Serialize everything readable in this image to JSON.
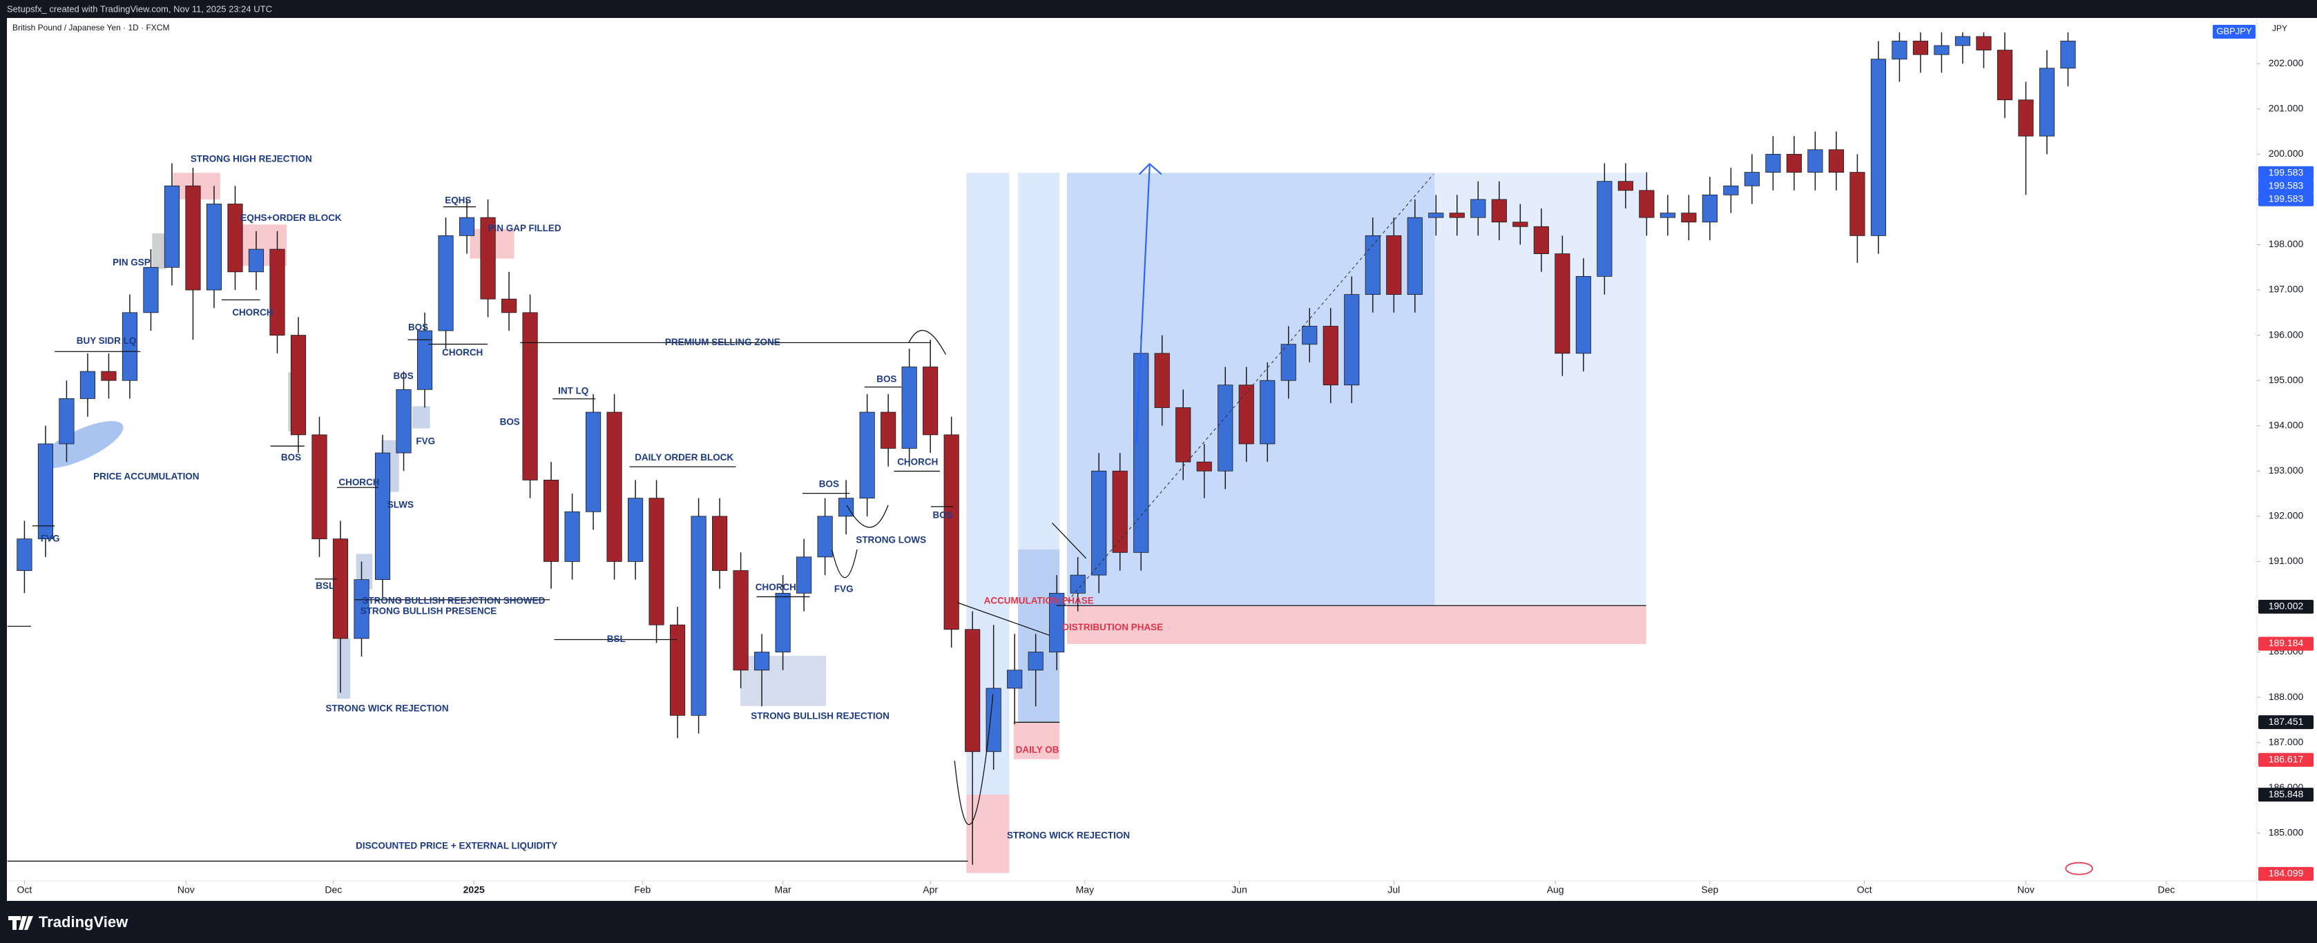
{
  "header": {
    "watermark": "Setupsfx_ created with TradingView.com, Nov 11, 2025 23:24 UTC",
    "brand": "TradingView"
  },
  "chart_data": {
    "type": "candlestick",
    "title": "British Pound / Japanese Yen · 1D · FXCM",
    "symbol": "GBPJPY",
    "currency": "JPY",
    "up_color": "#3a6fd8",
    "down_color": "#a3242b",
    "grid": false,
    "xlim": [
      -2.5,
      317.9
    ],
    "xticks": [
      {
        "value": 0,
        "label": "Oct"
      },
      {
        "value": 23,
        "label": "Nov"
      },
      {
        "value": 44,
        "label": "Dec"
      },
      {
        "value": 64,
        "label": "2025"
      },
      {
        "value": 88,
        "label": "Feb"
      },
      {
        "value": 108,
        "label": "Mar"
      },
      {
        "value": 129,
        "label": "Apr"
      },
      {
        "value": 151,
        "label": "May"
      },
      {
        "value": 173,
        "label": "Jun"
      },
      {
        "value": 195,
        "label": "Jul"
      },
      {
        "value": 218,
        "label": "Aug"
      },
      {
        "value": 240,
        "label": "Sep"
      },
      {
        "value": 262,
        "label": "Oct"
      },
      {
        "value": 285,
        "label": "Nov"
      },
      {
        "value": 305,
        "label": "Dec"
      }
    ],
    "ylim": [
      183.99,
      202.69
    ],
    "yticks": [
      {
        "value": 185,
        "label": "185.000"
      },
      {
        "value": 186,
        "label": "186.000"
      },
      {
        "value": 187,
        "label": "187.000"
      },
      {
        "value": 188,
        "label": "188.000"
      },
      {
        "value": 189,
        "label": "189.000"
      },
      {
        "value": 190,
        "label": "190.000"
      },
      {
        "value": 191,
        "label": "191.000"
      },
      {
        "value": 192,
        "label": "192.000"
      },
      {
        "value": 193,
        "label": "193.000"
      },
      {
        "value": 194,
        "label": "194.000"
      },
      {
        "value": 195,
        "label": "195.000"
      },
      {
        "value": 196,
        "label": "196.000"
      },
      {
        "value": 197,
        "label": "197.000"
      },
      {
        "value": 198,
        "label": "198.000"
      },
      {
        "value": 199,
        "label": "199.000"
      },
      {
        "value": 200,
        "label": "200.000"
      },
      {
        "value": 201,
        "label": "201.000"
      },
      {
        "value": 202,
        "label": "202.000"
      }
    ],
    "x": [
      0,
      3,
      6,
      9,
      12,
      15,
      18,
      21,
      24,
      27,
      30,
      33,
      36,
      39,
      42,
      45,
      48,
      51,
      54,
      57,
      60,
      63,
      66,
      69,
      72,
      75,
      78,
      81,
      84,
      87,
      90,
      93,
      96,
      99,
      102,
      105,
      108,
      111,
      114,
      117,
      120,
      123,
      126,
      129,
      132,
      135,
      138,
      141,
      144,
      147,
      150,
      153,
      156,
      159,
      162,
      165,
      168,
      171,
      174,
      177,
      180,
      183,
      186,
      189,
      192,
      195,
      198,
      201,
      204,
      207,
      210,
      213,
      216,
      219,
      222,
      225,
      228,
      231,
      234,
      237,
      240,
      243,
      246,
      249,
      252,
      255,
      258,
      261,
      264,
      267,
      270,
      273,
      276,
      279,
      282,
      285,
      288,
      291
    ],
    "open": [
      190.8,
      191.5,
      193.6,
      194.6,
      195.2,
      195.0,
      196.5,
      197.5,
      199.3,
      197.0,
      198.9,
      197.4,
      197.9,
      196.0,
      193.8,
      191.5,
      189.3,
      190.6,
      193.4,
      194.8,
      196.1,
      198.2,
      198.6,
      196.8,
      196.5,
      192.8,
      191.0,
      192.1,
      194.3,
      191.0,
      192.4,
      189.6,
      187.6,
      192.0,
      190.8,
      188.6,
      189.0,
      190.3,
      191.1,
      192.0,
      192.4,
      194.3,
      193.5,
      195.3,
      193.8,
      189.5,
      186.8,
      188.2,
      188.6,
      189.0,
      190.3,
      190.7,
      193.0,
      191.2,
      195.6,
      194.4,
      193.2,
      193.0,
      194.9,
      193.6,
      195.0,
      195.8,
      196.2,
      194.9,
      196.9,
      198.2,
      196.9,
      198.6,
      198.7,
      198.6,
      199.0,
      198.5,
      198.4,
      197.8,
      195.6,
      197.3,
      199.4,
      199.2,
      198.6,
      198.7,
      198.5,
      199.1,
      199.3,
      199.6,
      200.0,
      199.6,
      200.1,
      199.6,
      198.2,
      202.1,
      202.5,
      202.2,
      202.4,
      202.6,
      202.3,
      201.2,
      200.4,
      201.9
    ],
    "high": [
      191.9,
      194.0,
      195.0,
      195.6,
      195.6,
      196.9,
      197.9,
      199.8,
      199.7,
      199.3,
      199.3,
      198.3,
      198.3,
      196.4,
      194.2,
      191.9,
      191.0,
      193.8,
      195.2,
      196.5,
      198.6,
      199.0,
      199.0,
      197.4,
      196.9,
      193.2,
      192.5,
      194.7,
      194.7,
      192.8,
      192.8,
      190.0,
      192.4,
      192.4,
      191.2,
      189.4,
      190.7,
      191.5,
      192.4,
      192.8,
      194.7,
      194.7,
      195.7,
      195.9,
      194.2,
      189.9,
      189.6,
      189.4,
      189.4,
      190.7,
      191.1,
      193.4,
      193.4,
      196.0,
      196.0,
      194.8,
      193.6,
      195.3,
      195.3,
      195.4,
      196.2,
      196.6,
      196.6,
      197.3,
      198.6,
      198.6,
      199.0,
      199.1,
      199.1,
      199.4,
      199.4,
      198.9,
      198.8,
      198.2,
      197.7,
      199.8,
      199.8,
      199.6,
      199.1,
      199.1,
      199.5,
      199.7,
      200.0,
      200.4,
      200.4,
      200.5,
      200.5,
      200.0,
      202.5,
      202.9,
      202.9,
      202.8,
      203.0,
      203.0,
      202.7,
      201.6,
      202.3,
      202.9
    ],
    "low": [
      190.3,
      191.1,
      193.2,
      194.2,
      194.6,
      194.6,
      196.1,
      197.1,
      195.9,
      196.6,
      197.0,
      197.0,
      195.6,
      193.4,
      191.1,
      188.1,
      188.9,
      190.2,
      193.0,
      194.4,
      195.7,
      197.8,
      196.4,
      196.1,
      192.4,
      190.4,
      190.6,
      191.7,
      190.6,
      190.6,
      189.2,
      187.1,
      187.2,
      190.4,
      188.2,
      187.8,
      188.6,
      189.9,
      190.7,
      191.6,
      192.0,
      193.1,
      193.1,
      193.4,
      189.1,
      184.3,
      186.4,
      187.4,
      187.8,
      188.6,
      189.9,
      190.3,
      190.8,
      190.8,
      194.0,
      192.8,
      192.4,
      192.6,
      193.2,
      193.2,
      194.6,
      195.4,
      194.5,
      194.5,
      196.5,
      196.5,
      196.5,
      198.2,
      198.2,
      198.2,
      198.1,
      198.0,
      197.4,
      195.1,
      195.2,
      196.9,
      198.8,
      198.2,
      198.2,
      198.1,
      198.1,
      198.7,
      198.9,
      199.2,
      199.2,
      199.2,
      199.2,
      197.6,
      197.8,
      201.6,
      201.8,
      201.8,
      202.0,
      201.9,
      200.8,
      199.1,
      200.0,
      201.5
    ],
    "close": [
      191.5,
      193.6,
      194.6,
      195.2,
      195.0,
      196.5,
      197.5,
      199.3,
      197.0,
      198.9,
      197.4,
      197.9,
      196.0,
      193.8,
      191.5,
      189.3,
      190.6,
      193.4,
      194.8,
      196.1,
      198.2,
      198.6,
      196.8,
      196.5,
      192.8,
      191.0,
      192.1,
      194.3,
      191.0,
      192.4,
      189.6,
      187.6,
      192.0,
      190.8,
      188.6,
      189.0,
      190.3,
      191.1,
      192.0,
      192.4,
      194.3,
      193.5,
      195.3,
      193.8,
      189.5,
      186.8,
      188.2,
      188.6,
      189.0,
      190.3,
      190.7,
      193.0,
      191.2,
      195.6,
      194.4,
      193.2,
      193.0,
      194.9,
      193.6,
      195.0,
      195.8,
      196.2,
      194.9,
      196.9,
      198.2,
      196.9,
      198.6,
      198.7,
      198.6,
      199.0,
      198.5,
      198.4,
      197.8,
      195.6,
      197.3,
      199.4,
      199.2,
      198.6,
      198.7,
      198.5,
      199.1,
      199.3,
      199.6,
      200.0,
      199.6,
      200.1,
      199.6,
      198.2,
      202.1,
      202.5,
      202.2,
      202.4,
      202.6,
      202.3,
      201.2,
      200.4,
      201.9,
      202.5
    ],
    "price_tags": [
      {
        "value": 199.583,
        "color": "#2962ff"
      },
      {
        "value": 199.583,
        "color": "#2962ff"
      },
      {
        "value": 199.583,
        "color": "#2962ff"
      },
      {
        "value": 190.002,
        "color": "#131722"
      },
      {
        "value": 189.184,
        "color": "#f23645"
      },
      {
        "value": 187.451,
        "color": "#131722"
      },
      {
        "value": 186.617,
        "color": "#f23645"
      },
      {
        "value": 185.848,
        "color": "#131722"
      },
      {
        "value": 184.099,
        "color": "#f23645"
      }
    ],
    "annotations": [
      "STRONG HIGH REJECTION",
      "EQHS+ORDER BLOCK",
      "PIN GSP",
      "CHORCH",
      "BUY SIDR LQ",
      "PRICE ACCUMULATION",
      "FVG",
      "BOS",
      "CHORCH",
      "SLWS",
      "BSL",
      "STRONG WICK REJECTION",
      "EQHS",
      "PIN GAP FILLED",
      "BOS",
      "BOS",
      "CHORCH",
      "FVG",
      "BOS",
      "PREMIUM SELLING ZONE",
      "INT LQ",
      "DAILY ORDER BLOCK",
      "STRONG BULLISH REEJCTION SHOWED",
      "STRONG BULLISH PRESENCE",
      "BSL",
      "CHORCH",
      "FVG",
      "STRONG BULLISH REJECTION",
      "BOS",
      "BOS",
      "CHORCH",
      "STRONG LOWS",
      "BOS",
      "DISCOUNTED PRICE + EXTERNAL LIQUIDITY",
      "STRONG WICK REJECTION",
      "ACCUMULATION PHASE",
      "DISTRIBUTION PHASE",
      "DAILY OB"
    ]
  }
}
